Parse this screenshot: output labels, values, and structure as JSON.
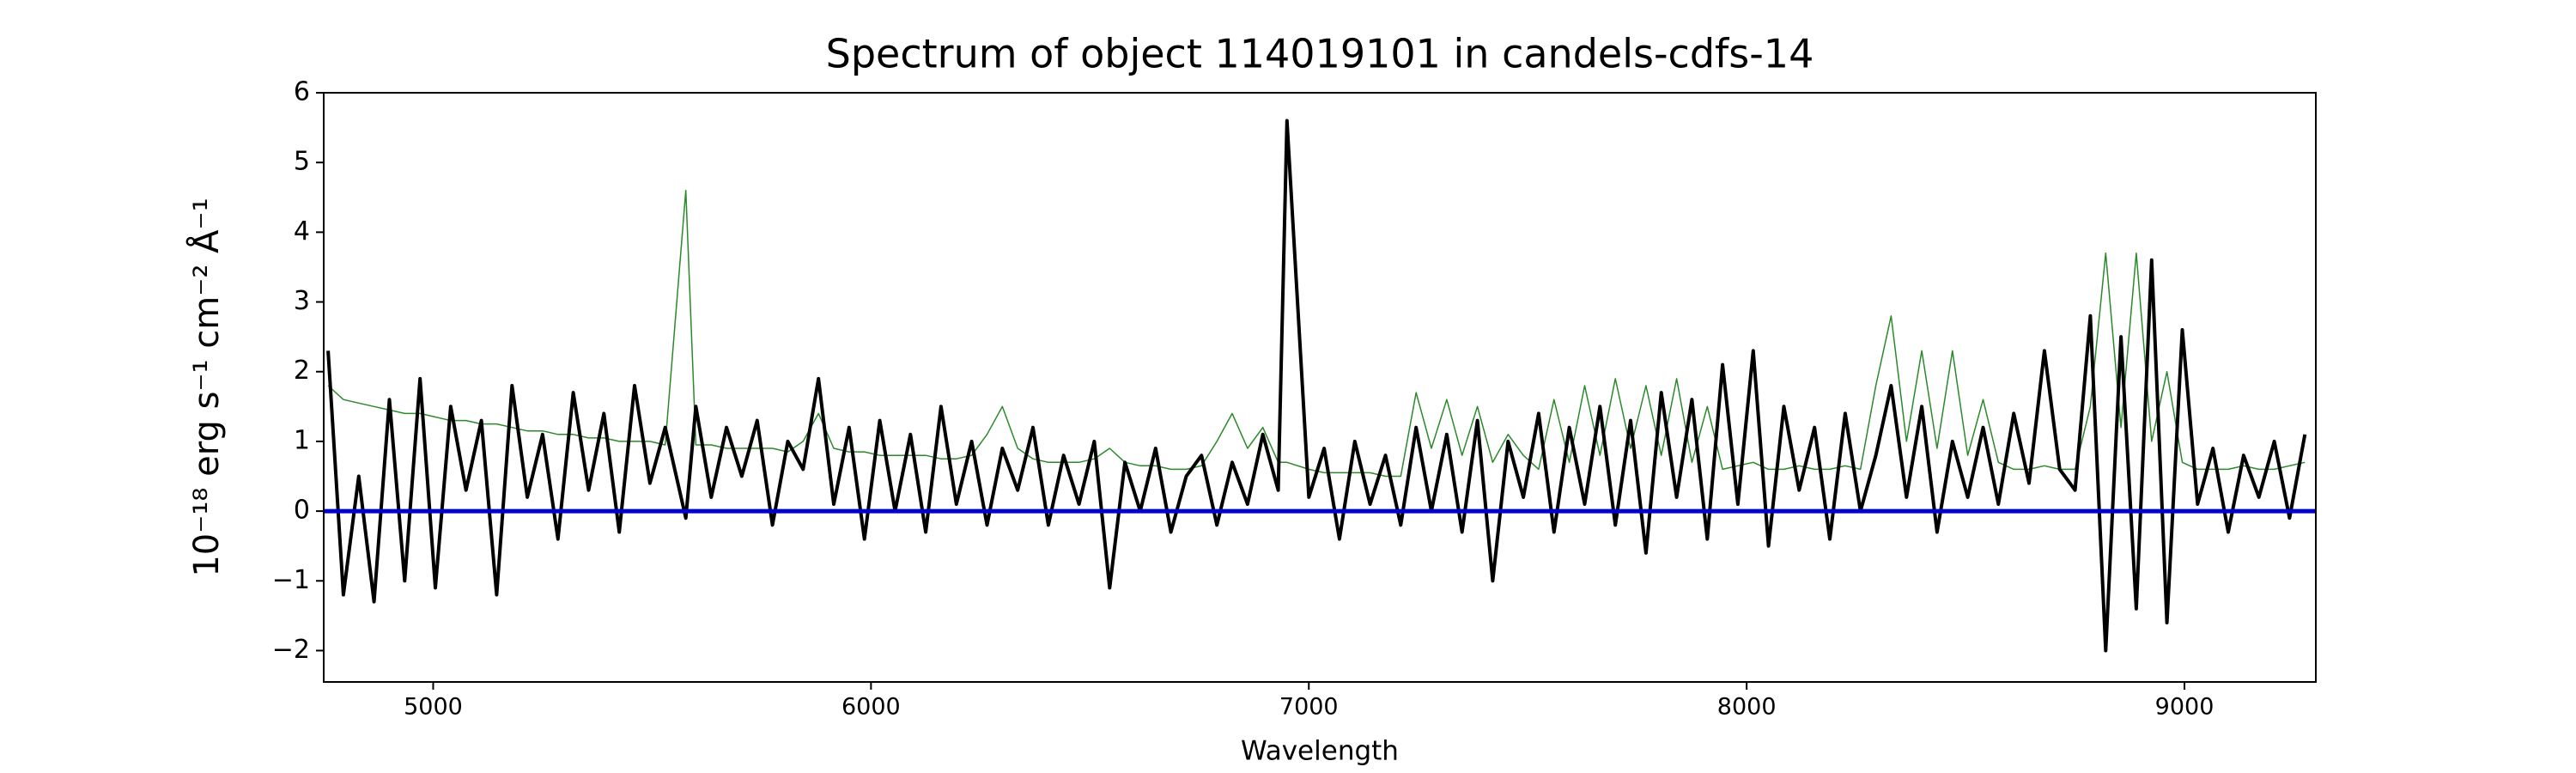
{
  "chart_data": {
    "type": "line",
    "title": "Spectrum of object 114019101 in candels-cdfs-14",
    "x_label": "Wavelength",
    "y_label": "10⁻¹⁸ erg s⁻¹ cm⁻² Å⁻¹",
    "x": [
      4760,
      4795,
      4830,
      4865,
      4900,
      4935,
      4970,
      5005,
      5040,
      5075,
      5110,
      5145,
      5180,
      5215,
      5250,
      5285,
      5320,
      5355,
      5390,
      5425,
      5460,
      5495,
      5530,
      5577,
      5600,
      5635,
      5670,
      5705,
      5740,
      5775,
      5810,
      5845,
      5880,
      5915,
      5950,
      5985,
      6020,
      6055,
      6090,
      6125,
      6160,
      6195,
      6230,
      6265,
      6300,
      6335,
      6370,
      6405,
      6440,
      6475,
      6510,
      6545,
      6580,
      6615,
      6650,
      6685,
      6720,
      6755,
      6790,
      6825,
      6860,
      6895,
      6930,
      6950,
      7000,
      7035,
      7070,
      7105,
      7140,
      7175,
      7210,
      7245,
      7280,
      7315,
      7350,
      7385,
      7420,
      7455,
      7490,
      7525,
      7560,
      7595,
      7630,
      7665,
      7700,
      7735,
      7770,
      7805,
      7840,
      7875,
      7910,
      7945,
      7980,
      8015,
      8050,
      8085,
      8120,
      8155,
      8190,
      8225,
      8260,
      8295,
      8330,
      8365,
      8400,
      8435,
      8470,
      8505,
      8540,
      8575,
      8610,
      8645,
      8680,
      8715,
      8750,
      8785,
      8820,
      8855,
      8890,
      8925,
      8960,
      8995,
      9030,
      9065,
      9100,
      9135,
      9170,
      9205,
      9240,
      9275
    ],
    "series": [
      {
        "color": "#2a8a2a",
        "width": 1.5,
        "values": [
          1.8,
          1.6,
          1.55,
          1.5,
          1.45,
          1.4,
          1.4,
          1.35,
          1.3,
          1.3,
          1.25,
          1.25,
          1.2,
          1.15,
          1.15,
          1.1,
          1.1,
          1.05,
          1.05,
          1.0,
          1.0,
          1.0,
          0.95,
          4.6,
          0.95,
          0.95,
          0.9,
          0.9,
          0.9,
          0.9,
          0.85,
          1.0,
          1.4,
          0.9,
          0.85,
          0.85,
          0.8,
          0.8,
          0.8,
          0.8,
          0.75,
          0.75,
          0.8,
          1.1,
          1.5,
          0.9,
          0.75,
          0.7,
          0.7,
          0.7,
          0.75,
          0.9,
          0.7,
          0.65,
          0.65,
          0.6,
          0.6,
          0.65,
          1.0,
          1.4,
          0.9,
          1.2,
          0.7,
          0.7,
          0.6,
          0.55,
          0.55,
          0.55,
          0.55,
          0.5,
          0.5,
          1.7,
          0.9,
          1.6,
          0.8,
          1.5,
          0.7,
          1.1,
          0.8,
          0.6,
          1.6,
          0.7,
          1.8,
          0.8,
          1.9,
          0.9,
          1.8,
          0.8,
          1.9,
          0.7,
          1.5,
          0.6,
          0.65,
          0.7,
          0.6,
          0.6,
          0.65,
          0.6,
          0.6,
          0.65,
          0.6,
          1.8,
          2.8,
          1.0,
          2.3,
          0.9,
          2.3,
          0.8,
          1.6,
          0.7,
          0.6,
          0.6,
          0.65,
          0.6,
          0.6,
          1.5,
          3.7,
          1.2,
          3.7,
          1.0,
          2.0,
          0.7,
          0.6,
          0.6,
          0.6,
          0.65,
          0.6,
          0.6,
          0.65,
          0.7
        ]
      },
      {
        "color": "#000000",
        "width": 4,
        "values": [
          2.3,
          -1.2,
          0.5,
          -1.3,
          1.6,
          -1.0,
          1.9,
          -1.1,
          1.5,
          0.3,
          1.3,
          -1.2,
          1.8,
          0.2,
          1.1,
          -0.4,
          1.7,
          0.3,
          1.4,
          -0.3,
          1.8,
          0.4,
          1.2,
          -0.1,
          1.5,
          0.2,
          1.2,
          0.5,
          1.3,
          -0.2,
          1.0,
          0.6,
          1.9,
          0.1,
          1.2,
          -0.4,
          1.3,
          0.0,
          1.1,
          -0.3,
          1.5,
          0.1,
          1.0,
          -0.2,
          0.9,
          0.3,
          1.2,
          -0.2,
          0.8,
          0.1,
          1.0,
          -1.1,
          0.7,
          0.0,
          0.9,
          -0.3,
          0.5,
          0.8,
          -0.2,
          0.7,
          0.1,
          1.1,
          0.3,
          5.6,
          0.2,
          0.9,
          -0.4,
          1.0,
          0.1,
          0.8,
          -0.2,
          1.2,
          0.0,
          1.1,
          -0.3,
          1.3,
          -1.0,
          1.0,
          0.2,
          1.4,
          -0.3,
          1.2,
          0.1,
          1.5,
          -0.2,
          1.3,
          -0.6,
          1.7,
          0.2,
          1.6,
          -0.4,
          2.1,
          0.1,
          2.3,
          -0.5,
          1.5,
          0.3,
          1.2,
          -0.4,
          1.4,
          0.0,
          0.8,
          1.8,
          0.2,
          1.5,
          -0.3,
          1.0,
          0.2,
          1.2,
          0.1,
          1.4,
          0.4,
          2.3,
          0.6,
          0.3,
          2.8,
          -2.0,
          2.5,
          -1.4,
          3.6,
          -1.6,
          2.6,
          0.1,
          0.9,
          -0.3,
          0.8,
          0.2,
          1.0,
          -0.1,
          1.1
        ]
      }
    ],
    "reference_line": {
      "y": 0,
      "color": "#0000cc",
      "width": 5
    },
    "xlim": [
      4750,
      9300
    ],
    "ylim": [
      -2.45,
      6
    ],
    "xticks": [
      5000,
      6000,
      7000,
      8000,
      9000
    ],
    "yticks": [
      {
        "value": -2,
        "label": "−2"
      },
      {
        "value": -1,
        "label": "−1"
      },
      0,
      1,
      2,
      3,
      4,
      5,
      6
    ],
    "grid": false
  }
}
